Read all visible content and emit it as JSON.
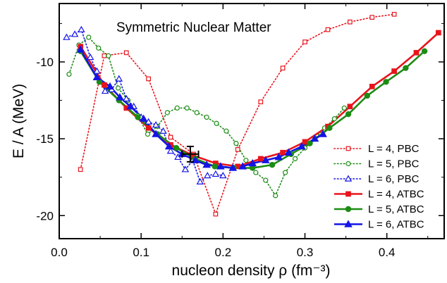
{
  "chart_data": {
    "type": "line",
    "title": "Symmetric Nuclear Matter",
    "xlabel": "nucleon density ρ (fm⁻³)",
    "ylabel": "E / A (MeV)",
    "xlim": [
      0.0,
      0.47
    ],
    "ylim": [
      -21.5,
      -6.2
    ],
    "xticks": [
      0.0,
      0.1,
      0.2,
      0.3,
      0.4
    ],
    "xtick_labels": [
      "0.0",
      "0.1",
      "0.2",
      "0.3",
      "0.4"
    ],
    "yticks": [
      -10,
      -15,
      -20
    ],
    "ytick_labels": [
      "-10",
      "-15",
      "-20"
    ],
    "grid": false,
    "legend_position": "bottom-right",
    "series": [
      {
        "name": "L = 4, PBC",
        "color": "#e8141c",
        "dash": "dotted",
        "marker": "square-open",
        "x": [
          0.026,
          0.055,
          0.082,
          0.109,
          0.136,
          0.164,
          0.191,
          0.218,
          0.246,
          0.273,
          0.3,
          0.328,
          0.355,
          0.382,
          0.409
        ],
        "y": [
          -17.0,
          -9.6,
          -9.4,
          -11.1,
          -14.9,
          -16.0,
          -19.9,
          -15.7,
          -12.6,
          -10.4,
          -8.7,
          -7.9,
          -7.4,
          -7.1,
          -6.9
        ]
      },
      {
        "name": "L = 5, PBC",
        "color": "#1c8c14",
        "dash": "dotted",
        "marker": "circle-open",
        "x": [
          0.012,
          0.024,
          0.036,
          0.048,
          0.06,
          0.072,
          0.084,
          0.096,
          0.108,
          0.12,
          0.132,
          0.144,
          0.156,
          0.168,
          0.18,
          0.192,
          0.204,
          0.216,
          0.228,
          0.24,
          0.252,
          0.264,
          0.276,
          0.288,
          0.3,
          0.312,
          0.324,
          0.336,
          0.348
        ],
        "y": [
          -10.8,
          -8.9,
          -8.4,
          -9.1,
          -9.6,
          -11.7,
          -12.5,
          -13.5,
          -14.7,
          -14.2,
          -13.3,
          -13.0,
          -13.0,
          -13.3,
          -13.6,
          -14.0,
          -14.5,
          -15.3,
          -16.4,
          -17.2,
          -17.7,
          -18.7,
          -17.2,
          -16.3,
          -15.6,
          -15.0,
          -14.3,
          -13.7,
          -13.0
        ]
      },
      {
        "name": "L = 6, PBC",
        "color": "#1414e6",
        "dash": "dotted",
        "marker": "triangle-open",
        "x": [
          0.009,
          0.019,
          0.027,
          0.038,
          0.046,
          0.056,
          0.064,
          0.073,
          0.082,
          0.091,
          0.1,
          0.109,
          0.118,
          0.127,
          0.136,
          0.145,
          0.154,
          0.163,
          0.172,
          0.181,
          0.191,
          0.2
        ],
        "y": [
          -8.4,
          -8.2,
          -7.9,
          -9.7,
          -10.6,
          -11.9,
          -11.8,
          -11.1,
          -12.4,
          -12.9,
          -13.6,
          -13.9,
          -14.1,
          -14.5,
          -15.8,
          -16.2,
          -17.0,
          -16.4,
          -17.8,
          -17.4,
          -17.3,
          -17.4
        ]
      },
      {
        "name": "L = 4, ATBC",
        "color": "#e8141c",
        "dash": "solid",
        "marker": "square-filled",
        "x": [
          0.026,
          0.055,
          0.082,
          0.109,
          0.136,
          0.164,
          0.191,
          0.218,
          0.246,
          0.273,
          0.3,
          0.328,
          0.355,
          0.382,
          0.409,
          0.436,
          0.463
        ],
        "y": [
          -9.0,
          -11.5,
          -13.0,
          -14.3,
          -15.4,
          -16.1,
          -16.6,
          -16.8,
          -16.3,
          -15.9,
          -15.2,
          -14.2,
          -12.9,
          -11.6,
          -10.6,
          -9.4,
          -8.1
        ]
      },
      {
        "name": "L = 5, ATBC",
        "color": "#1c8c14",
        "dash": "solid",
        "marker": "circle-filled",
        "x": [
          0.026,
          0.049,
          0.073,
          0.096,
          0.12,
          0.143,
          0.166,
          0.19,
          0.213,
          0.236,
          0.26,
          0.283,
          0.306,
          0.33,
          0.353,
          0.376,
          0.399,
          0.423,
          0.446
        ],
        "y": [
          -9.3,
          -11.3,
          -12.5,
          -13.6,
          -14.7,
          -15.6,
          -16.3,
          -16.8,
          -16.9,
          -16.9,
          -16.7,
          -16.0,
          -15.3,
          -14.3,
          -13.4,
          -12.2,
          -11.3,
          -10.4,
          -9.3
        ]
      },
      {
        "name": "L = 6, ATBC",
        "color": "#1414e6",
        "dash": "solid",
        "marker": "triangle-filled",
        "x": [
          0.026,
          0.046,
          0.062,
          0.074,
          0.087,
          0.103,
          0.118,
          0.134,
          0.15,
          0.166,
          0.18,
          0.197,
          0.212,
          0.224,
          0.236,
          0.252,
          0.268,
          0.28,
          0.296,
          0.312,
          0.322
        ],
        "y": [
          -9.2,
          -11.0,
          -11.6,
          -12.3,
          -12.9,
          -13.7,
          -14.7,
          -15.5,
          -16.0,
          -16.4,
          -16.7,
          -16.8,
          -16.9,
          -16.8,
          -16.6,
          -16.4,
          -16.2,
          -15.9,
          -15.5,
          -15.0,
          -14.7
        ]
      }
    ],
    "error_point": {
      "x": 0.16,
      "y": -16.0,
      "xerr": 0.01,
      "yerr": 0.5
    }
  }
}
